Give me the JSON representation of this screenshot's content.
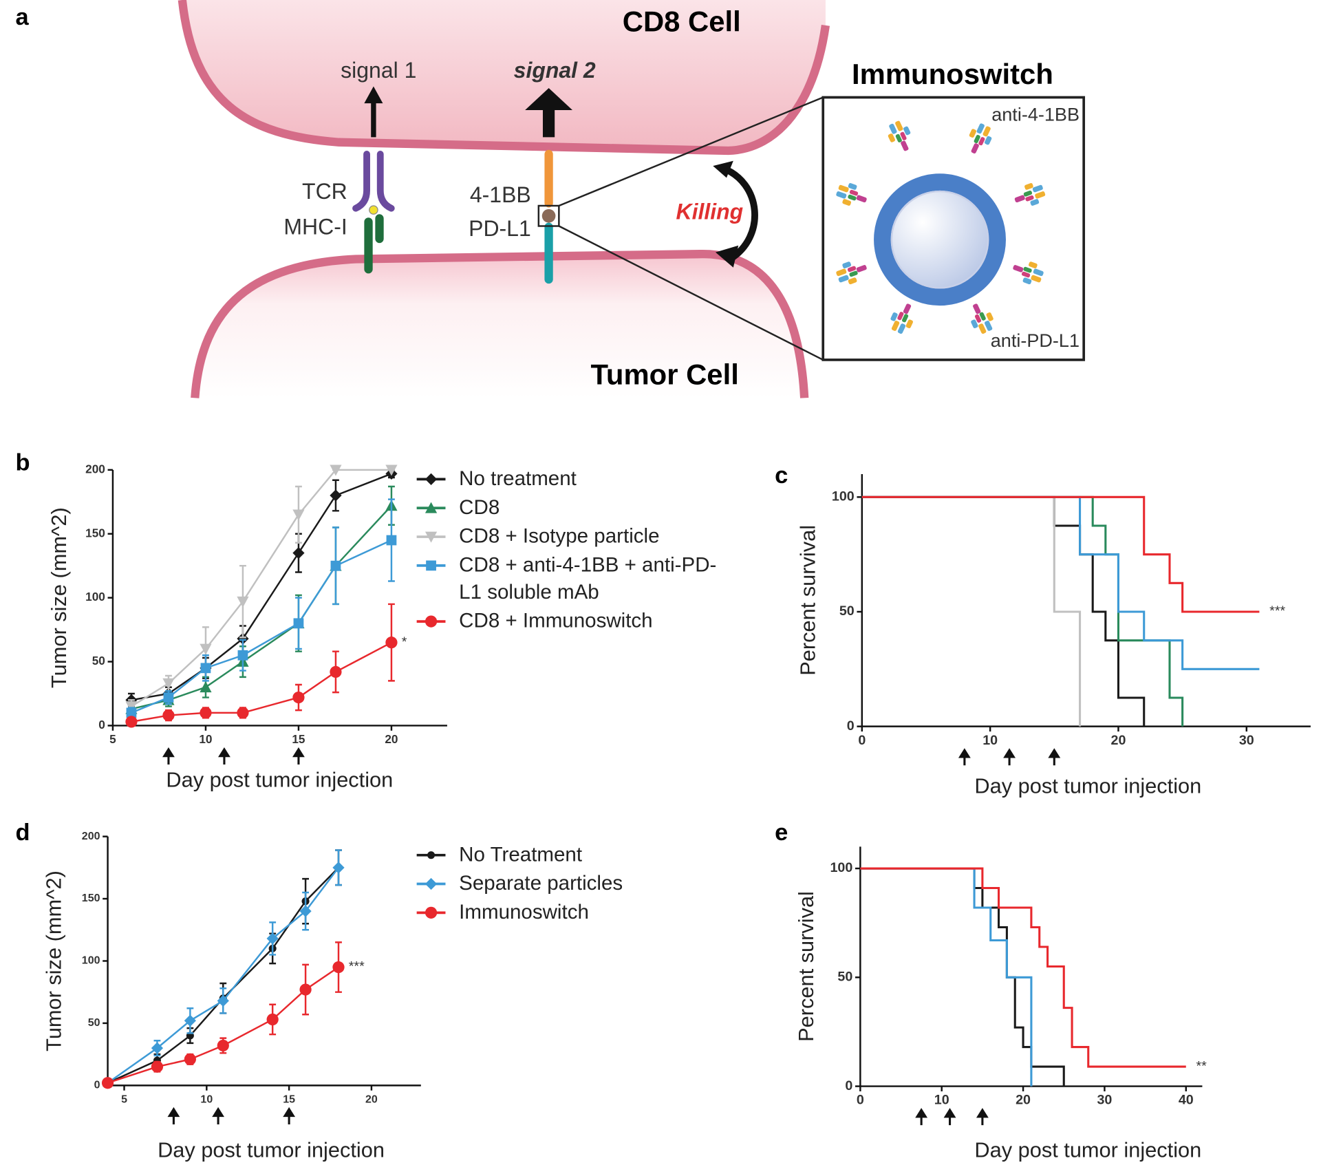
{
  "panel_labels": [
    "a",
    "b",
    "c",
    "d",
    "e"
  ],
  "diagram": {
    "top_cell": "CD8 Cell",
    "bottom_cell": "Tumor Cell",
    "signal_1": "signal 1",
    "signal_2": "signal 2",
    "tcr": "TCR",
    "mhc": "MHC-I",
    "receptor": "4-1BB",
    "ligand": "PD-L1",
    "killing": "Killing",
    "inset_title": "Immunoswitch",
    "inset_top": "anti-4-1BB",
    "inset_bottom": "anti-PD-L1"
  },
  "chart_data": [
    {
      "type": "line",
      "ylabel": "Tumor size (mm^2)",
      "xlabel": "Day post tumor injection",
      "xlim": [
        5,
        23
      ],
      "ylim": [
        0,
        200
      ],
      "xticks": [
        5,
        10,
        15,
        20
      ],
      "yticks": [
        0,
        50,
        100,
        150,
        200
      ],
      "x": [
        6,
        8,
        10,
        12,
        15,
        17,
        20
      ],
      "series": [
        {
          "name": "No treatment",
          "color": "#1a1a1a",
          "marker": "diamond",
          "values": [
            20,
            25,
            45,
            68,
            135,
            180,
            197
          ],
          "errors": [
            5,
            5,
            8,
            10,
            15,
            12,
            3
          ]
        },
        {
          "name": "CD8",
          "color": "#2a8a5c",
          "marker": "triangle",
          "values": [
            13,
            20,
            30,
            50,
            80,
            125,
            172
          ],
          "errors": [
            4,
            5,
            8,
            12,
            22,
            30,
            15
          ]
        },
        {
          "name": "CD8 + Isotype particle",
          "color": "#c0c0c0",
          "marker": "inv-triangle",
          "values": [
            15,
            33,
            60,
            97,
            165,
            200,
            200
          ],
          "errors": [
            5,
            6,
            17,
            28,
            22,
            0,
            0
          ]
        },
        {
          "name": "CD8 + anti-4-1BB + anti-PD-L1 soluble mAb",
          "color": "#3d9ad6",
          "marker": "square",
          "values": [
            10,
            22,
            45,
            55,
            80,
            125,
            145
          ],
          "errors": [
            4,
            5,
            10,
            12,
            20,
            30,
            32
          ]
        },
        {
          "name": "CD8 + Immunoswitch",
          "color": "#e8282d",
          "marker": "circle",
          "values": [
            3,
            8,
            10,
            10,
            22,
            42,
            65
          ],
          "errors": [
            2,
            4,
            4,
            4,
            10,
            16,
            30
          ]
        }
      ],
      "annotation": "*",
      "arrows_x": [
        8,
        11,
        15
      ]
    },
    {
      "type": "step",
      "ylabel": "Percent survival",
      "xlabel": "Day post tumor injection",
      "xlim": [
        0,
        35
      ],
      "ylim": [
        0,
        110
      ],
      "xticks": [
        0,
        10,
        20,
        30
      ],
      "yticks": [
        0,
        50,
        100
      ],
      "series": [
        {
          "color": "#1a1a1a",
          "x": [
            0,
            15,
            17,
            18,
            19,
            20,
            22
          ],
          "values": [
            100,
            87.5,
            75,
            50,
            37.5,
            12.5,
            0
          ]
        },
        {
          "color": "#c0c0c0",
          "x": [
            0,
            15,
            17
          ],
          "values": [
            100,
            50,
            0
          ]
        },
        {
          "color": "#2a8a5c",
          "x": [
            0,
            18,
            19,
            20,
            24,
            25
          ],
          "values": [
            100,
            87.5,
            75,
            37.5,
            12.5,
            0
          ]
        },
        {
          "color": "#3d9ad6",
          "x": [
            0,
            17,
            20,
            22,
            25,
            31
          ],
          "values": [
            100,
            75,
            50,
            37.5,
            25,
            25
          ]
        },
        {
          "color": "#e8282d",
          "x": [
            0,
            22,
            24,
            25,
            31
          ],
          "values": [
            100,
            75,
            62.5,
            50,
            50
          ]
        }
      ],
      "annotation": "***",
      "arrows_x": [
        8,
        11.5,
        15
      ]
    },
    {
      "type": "line",
      "ylabel": "Tumor size (mm^2)",
      "xlabel": "Day post tumor injection",
      "xlim": [
        4,
        23
      ],
      "ylim": [
        0,
        200
      ],
      "xticks": [
        5,
        10,
        15,
        20
      ],
      "yticks": [
        0,
        50,
        100,
        150,
        200
      ],
      "x": [
        4,
        7,
        9,
        11,
        14,
        16,
        18
      ],
      "series": [
        {
          "name": "No Treatment",
          "color": "#1a1a1a",
          "marker": "circle-small",
          "values": [
            2,
            20,
            40,
            70,
            110,
            148,
            175
          ],
          "errors": [
            0,
            5,
            6,
            12,
            12,
            18,
            14
          ]
        },
        {
          "name": "Separate particles",
          "color": "#3d9ad6",
          "marker": "diamond",
          "values": [
            2,
            30,
            52,
            68,
            118,
            140,
            175
          ],
          "errors": [
            0,
            6,
            10,
            10,
            13,
            15,
            14
          ]
        },
        {
          "name": "Immunoswitch",
          "color": "#e8282d",
          "marker": "circle",
          "values": [
            2,
            15,
            21,
            32,
            53,
            77,
            95
          ],
          "errors": [
            0,
            4,
            4,
            6,
            12,
            20,
            20
          ]
        }
      ],
      "annotation": "***",
      "arrows_x": [
        8,
        10.7,
        15
      ]
    },
    {
      "type": "step",
      "ylabel": "Percent survival",
      "xlabel": "Day post tumor injection",
      "xlim": [
        0,
        42
      ],
      "ylim": [
        0,
        110
      ],
      "xticks": [
        0,
        10,
        20,
        30,
        40
      ],
      "yticks": [
        0,
        50,
        100
      ],
      "series": [
        {
          "color": "#1a1a1a",
          "x": [
            0,
            14,
            15,
            17,
            18,
            19,
            20,
            21,
            25
          ],
          "values": [
            100,
            91,
            82,
            73,
            50,
            27,
            18,
            9,
            0
          ]
        },
        {
          "color": "#3d9ad6",
          "x": [
            0,
            14,
            16,
            18,
            21
          ],
          "values": [
            100,
            82,
            67,
            50,
            0
          ]
        },
        {
          "color": "#e8282d",
          "x": [
            0,
            15,
            17,
            21,
            22,
            23,
            25,
            26,
            28,
            40
          ],
          "values": [
            100,
            91,
            82,
            73,
            64,
            55,
            36,
            18,
            9,
            9
          ]
        }
      ],
      "annotation": "**",
      "arrows_x": [
        7.5,
        11,
        15
      ]
    }
  ]
}
